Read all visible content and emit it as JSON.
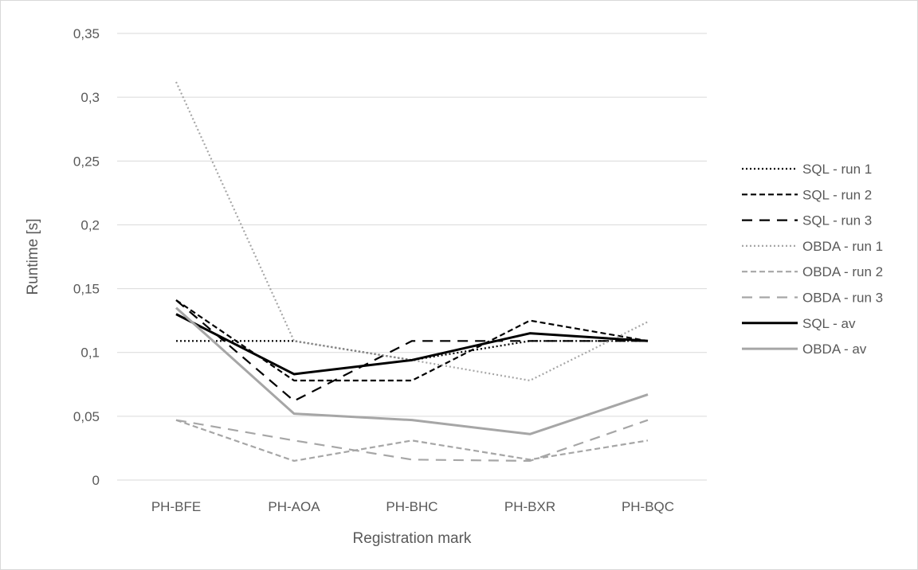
{
  "chart_data": {
    "type": "line",
    "title": "",
    "xlabel": "Registration mark",
    "ylabel": "Runtime [s]",
    "categories": [
      "PH-BFE",
      "PH-AOA",
      "PH-BHC",
      "PH-BXR",
      "PH-BQC"
    ],
    "ylim": [
      0,
      0.35
    ],
    "yticks": [
      0,
      0.05,
      0.1,
      0.15,
      0.2,
      0.25,
      0.3,
      0.35
    ],
    "ytick_labels": [
      "0",
      "0,05",
      "0,1",
      "0,15",
      "0,2",
      "0,25",
      "0,3",
      "0,35"
    ],
    "grid": "horizontal",
    "legend_position": "right",
    "series": [
      {
        "name": "SQL - run 1",
        "values": [
          0.109,
          0.109,
          0.094,
          0.109,
          0.109
        ],
        "color": "#000000",
        "style": "dotted"
      },
      {
        "name": "SQL - run 2",
        "values": [
          0.141,
          0.078,
          0.078,
          0.125,
          0.109
        ],
        "color": "#000000",
        "style": "short-dash"
      },
      {
        "name": "SQL - run 3",
        "values": [
          0.141,
          0.062,
          0.109,
          0.109,
          0.109
        ],
        "color": "#000000",
        "style": "long-dash"
      },
      {
        "name": "OBDA - run 1",
        "values": [
          0.312,
          0.109,
          0.094,
          0.078,
          0.124
        ],
        "color": "#a6a6a6",
        "style": "dotted"
      },
      {
        "name": "OBDA - run 2",
        "values": [
          0.047,
          0.015,
          0.031,
          0.016,
          0.031
        ],
        "color": "#a6a6a6",
        "style": "short-dash"
      },
      {
        "name": "OBDA - run 3",
        "values": [
          0.047,
          0.031,
          0.016,
          0.015,
          0.047
        ],
        "color": "#a6a6a6",
        "style": "long-dash"
      },
      {
        "name": "SQL - av",
        "values": [
          0.13,
          0.083,
          0.094,
          0.115,
          0.109
        ],
        "color": "#000000",
        "style": "solid"
      },
      {
        "name": "OBDA - av",
        "values": [
          0.135,
          0.052,
          0.047,
          0.036,
          0.067
        ],
        "color": "#a6a6a6",
        "style": "solid"
      }
    ]
  }
}
